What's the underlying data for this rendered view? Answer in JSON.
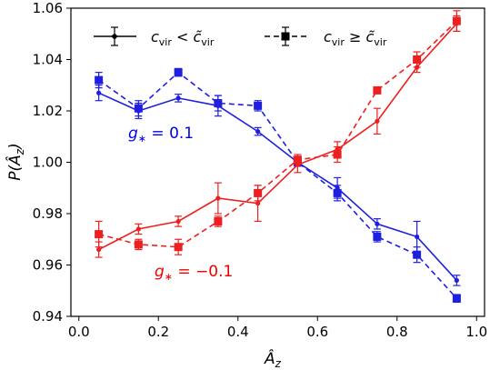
{
  "chart_data": {
    "type": "line",
    "xlabel": "Â_z",
    "ylabel": "P(Â_z)",
    "xlim": [
      -0.02,
      1.02
    ],
    "ylim": [
      0.94,
      1.06
    ],
    "xticks": [
      "0.0",
      "0.2",
      "0.4",
      "0.6",
      "0.8",
      "1.0"
    ],
    "yticks": [
      "0.94",
      "0.96",
      "0.98",
      "1.00",
      "1.02",
      "1.04",
      "1.06"
    ],
    "x": [
      0.05,
      0.15,
      0.25,
      0.35,
      0.45,
      0.55,
      0.65,
      0.75,
      0.85,
      0.95
    ],
    "legend": {
      "placement": "top",
      "entries": [
        {
          "label": "c_vir < c̃_vir",
          "style": "solid",
          "marker": "dot"
        },
        {
          "label": "c_vir ≥ c̃_vir",
          "style": "dashed",
          "marker": "square"
        }
      ]
    },
    "annotations": [
      {
        "text": "g* = 0.1",
        "color": "#0000ee"
      },
      {
        "text": "g* = −0.1",
        "color": "#ee0000"
      }
    ],
    "series": [
      {
        "group": "g* = 0.1",
        "subset": "c_vir < c̃_vir",
        "color": "#1f1fe0",
        "style": "solid",
        "marker": "dot",
        "values": [
          1.027,
          1.02,
          1.025,
          1.022,
          1.012,
          1.0,
          0.99,
          0.976,
          0.971,
          0.954
        ],
        "errors": [
          0.003,
          0.003,
          0.0015,
          0.004,
          0.0015,
          0.0015,
          0.004,
          0.002,
          0.006,
          0.002
        ]
      },
      {
        "group": "g* = 0.1",
        "subset": "c_vir ≥ c̃_vir",
        "color": "#1f1fe0",
        "style": "dashed",
        "marker": "square",
        "values": [
          1.032,
          1.021,
          1.035,
          1.023,
          1.022,
          1.0,
          0.988,
          0.971,
          0.964,
          0.947
        ],
        "errors": [
          0.003,
          0.003,
          0.0015,
          0.003,
          0.002,
          0.0015,
          0.003,
          0.002,
          0.003,
          0.0015
        ]
      },
      {
        "group": "g* = −0.1",
        "subset": "c_vir < c̃_vir",
        "color": "#ee1f1f",
        "style": "solid",
        "marker": "dot",
        "values": [
          0.966,
          0.974,
          0.977,
          0.986,
          0.984,
          0.999,
          1.005,
          1.016,
          1.037,
          1.054
        ],
        "errors": [
          0.003,
          0.002,
          0.002,
          0.006,
          0.007,
          0.003,
          0.003,
          0.005,
          0.002,
          0.003
        ]
      },
      {
        "group": "g* = −0.1",
        "subset": "c_vir ≥ c̃_vir",
        "color": "#ee1f1f",
        "style": "dashed",
        "marker": "square",
        "values": [
          0.972,
          0.968,
          0.967,
          0.977,
          0.988,
          1.001,
          1.003,
          1.028,
          1.04,
          1.055
        ],
        "errors": [
          0.005,
          0.002,
          0.003,
          0.002,
          0.003,
          0.002,
          0.003,
          0.001,
          0.003,
          0.004
        ]
      }
    ]
  }
}
